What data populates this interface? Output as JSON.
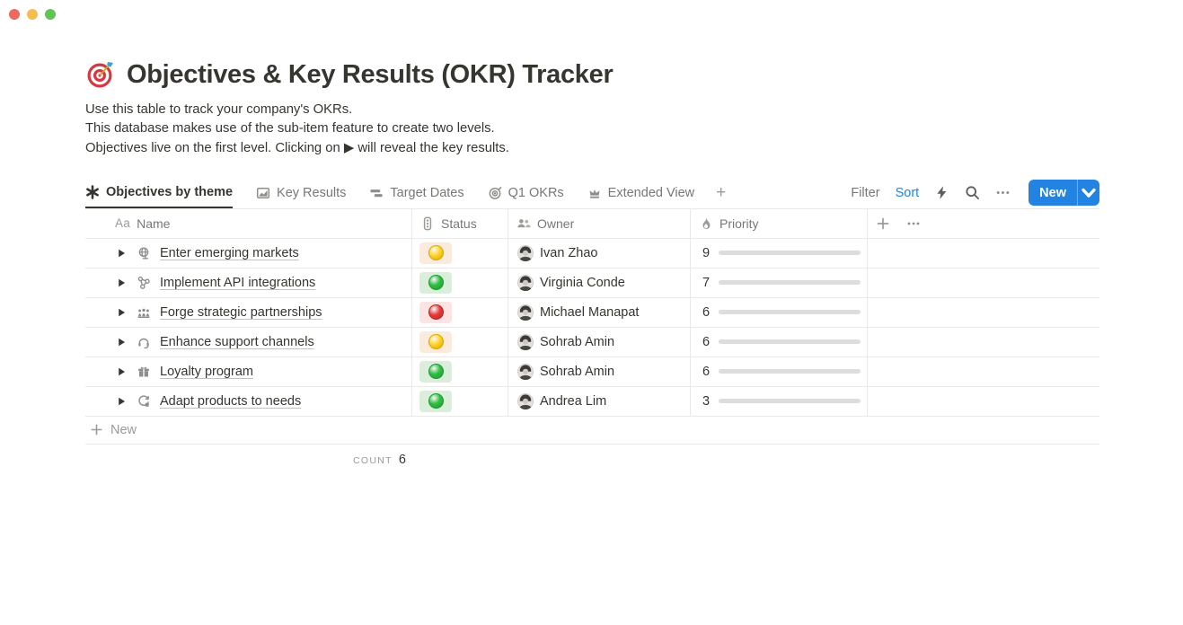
{
  "window": {
    "traffic_lights": [
      "close",
      "minimize",
      "zoom"
    ]
  },
  "header": {
    "emoji": "dartboard",
    "title": "Objectives & Key Results (OKR) Tracker",
    "description_lines": [
      "Use this table to track your company's OKRs.",
      "This database makes use of the sub-item feature to create two levels.",
      "Objectives live on the first level. Clicking on ▶ will reveal the key results."
    ]
  },
  "tabs": {
    "items": [
      {
        "label": "Objectives by theme",
        "icon": "asterisk-icon",
        "active": true
      },
      {
        "label": "Key Results",
        "icon": "chart-icon",
        "active": false
      },
      {
        "label": "Target Dates",
        "icon": "timeline-icon",
        "active": false
      },
      {
        "label": "Q1 OKRs",
        "icon": "target-icon",
        "active": false
      },
      {
        "label": "Extended View",
        "icon": "crown-icon",
        "active": false
      }
    ],
    "add_label": "+"
  },
  "toolbar": {
    "filter_label": "Filter",
    "sort_label": "Sort",
    "icons": [
      "bolt-icon",
      "search-icon",
      "dots-icon"
    ],
    "new_label": "New"
  },
  "table": {
    "text_type_glyph": "Aa",
    "columns": [
      {
        "label": "Name",
        "icon": "text-type-icon"
      },
      {
        "label": "Status",
        "icon": "traffic-light-icon"
      },
      {
        "label": "Owner",
        "icon": "people-icon"
      },
      {
        "label": "Priority",
        "icon": "flame-icon"
      }
    ],
    "priority_max": 10,
    "rows": [
      {
        "icon": "globe-icon",
        "name": "Enter emerging markets",
        "status": "yellow",
        "owner": "Ivan Zhao",
        "priority": 9
      },
      {
        "icon": "api-icon",
        "name": "Implement API integrations",
        "status": "green",
        "owner": "Virginia Conde",
        "priority": 7
      },
      {
        "icon": "group-icon",
        "name": "Forge strategic partnerships",
        "status": "red",
        "owner": "Michael Manapat",
        "priority": 6
      },
      {
        "icon": "headset-icon",
        "name": "Enhance support channels",
        "status": "yellow",
        "owner": "Sohrab Amin",
        "priority": 6
      },
      {
        "icon": "gift-icon",
        "name": "Loyalty program",
        "status": "green",
        "owner": "Sohrab Amin",
        "priority": 6
      },
      {
        "icon": "sync-icon",
        "name": "Adapt products to needs",
        "status": "green",
        "owner": "Andrea Lim",
        "priority": 3
      }
    ],
    "new_row_label": "New",
    "count_label": "COUNT",
    "count_value": "6"
  },
  "colors": {
    "accent_blue": "#2383E2",
    "priority_bar": "#4D7C5E",
    "priority_track": "#DEDDDB",
    "border": "#E9E9E7",
    "status": {
      "yellow": {
        "bg": "#FAEBDD",
        "dot": "#FFD429",
        "rim": "#D9A800"
      },
      "green": {
        "bg": "#DBEDDB",
        "dot": "#2FBE41",
        "rim": "#1E9A32"
      },
      "red": {
        "bg": "#FBE4E1",
        "dot": "#E23E3C",
        "rim": "#BE2423"
      }
    }
  }
}
